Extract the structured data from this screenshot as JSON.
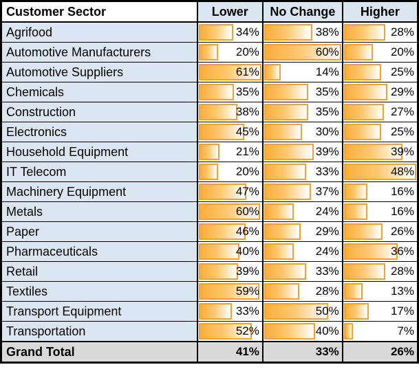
{
  "chart_data": {
    "type": "table",
    "row_header": "Customer Sector",
    "columns": [
      "Lower",
      "No Change",
      "Higher"
    ],
    "categories": [
      "Agrifood",
      "Automotive Manufacturers",
      "Automotive Suppliers",
      "Chemicals",
      "Construction",
      "Electronics",
      "Household Equipment",
      "IT Telecom",
      "Machinery Equipment",
      "Metals",
      "Paper",
      "Pharmaceuticals",
      "Retail",
      "Textiles",
      "Transport Equipment",
      "Transportation"
    ],
    "series": [
      {
        "name": "Lower",
        "values": [
          34,
          20,
          61,
          35,
          38,
          45,
          21,
          20,
          47,
          60,
          46,
          40,
          39,
          59,
          33,
          52
        ]
      },
      {
        "name": "No Change",
        "values": [
          38,
          60,
          14,
          35,
          35,
          30,
          39,
          33,
          37,
          24,
          29,
          24,
          33,
          28,
          50,
          40
        ]
      },
      {
        "name": "Higher",
        "values": [
          28,
          20,
          25,
          29,
          27,
          25,
          39,
          48,
          16,
          16,
          26,
          36,
          28,
          13,
          17,
          7
        ]
      }
    ],
    "grand_total": {
      "label": "Grand Total",
      "values": [
        41,
        33,
        26
      ]
    },
    "value_suffix": "%"
  },
  "colors": {
    "row_label_bg": "#dce6f1",
    "header_bg": "#dce6f1",
    "grand_total_bg": "#d9d9d9",
    "bar_border": "#f0a132",
    "bar_fill_start": "#fbae3c",
    "bar_fill_mid": "#fcc76f",
    "bar_fill_end": "#fef8ec",
    "grid_border": "#000000",
    "text": "#000000"
  }
}
